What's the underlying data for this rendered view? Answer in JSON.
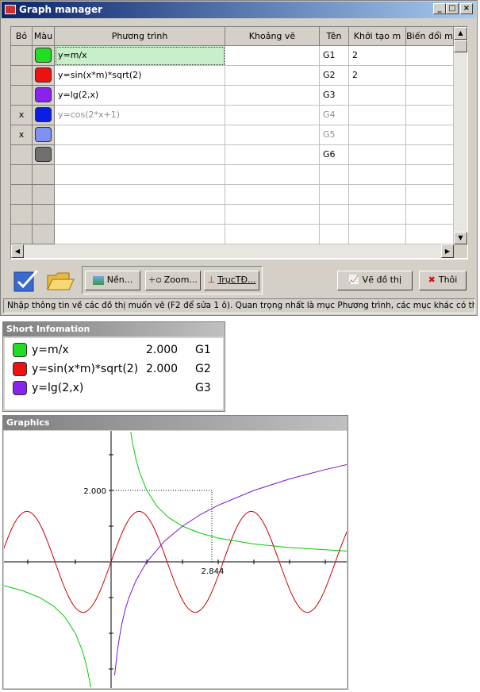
{
  "window": {
    "title": "Graph manager",
    "columns": [
      "Bỏ",
      "Màu",
      "Phương trình",
      "Khoảng vẽ",
      "Tên",
      "Khởi tạo m",
      "Biến đổi m"
    ],
    "rows": [
      {
        "color": "#22dd22",
        "equation": "y=m/x",
        "name": "G1",
        "m": 2
      },
      {
        "color": "#ee1111",
        "equation": "y=sin(x*m)*sqrt(2)",
        "name": "G2",
        "m": 2
      },
      {
        "color": "#8822ee",
        "equation": "y=lg(2,x)",
        "name": "G3"
      },
      {
        "removed": "x",
        "color": "#0a1ee6",
        "equation": "y=cos(2*x+1)",
        "name": "G4"
      },
      {
        "removed": "x",
        "color": "#8090f0",
        "name": "G5"
      },
      {
        "color": "#707070",
        "name": "G6"
      }
    ],
    "buttons": {
      "background": "Nền...",
      "zoom": "Zoom...",
      "axes": "TrụcTĐ...",
      "draw": "Vẽ đồ thị",
      "close": "Thôi"
    },
    "status": "Nhập thông tin về các đồ thị muốn vẽ (F2 để sửa 1 ô). Quan trọng nhất là mục Phương trình, các mục khác có thể bỏ qua."
  },
  "info": {
    "title": "Short Infomation",
    "items": [
      {
        "color": "#22dd22",
        "equation": "y=m/x",
        "value": "2.000",
        "name": "G1"
      },
      {
        "color": "#ee1111",
        "equation": "y=sin(x*m)*sqrt(2)",
        "value": "2.000",
        "name": "G2"
      },
      {
        "color": "#8822ee",
        "equation": "y=lg(2,x)",
        "name": "G3"
      }
    ]
  },
  "graphics": {
    "title": "Graphics",
    "y_label": "2.000",
    "x_label": "2.844"
  }
}
